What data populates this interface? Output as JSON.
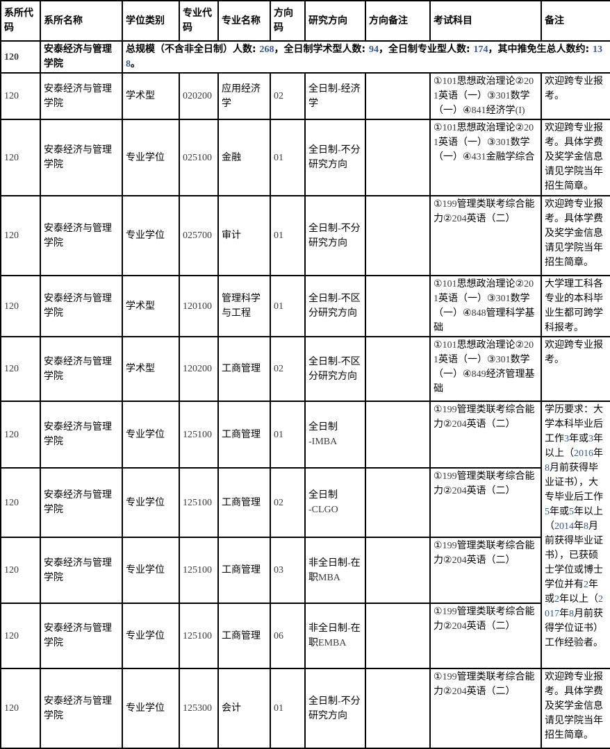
{
  "colors": {
    "border": "#000000",
    "text": "#000000",
    "code_digits": "#3c3c3c",
    "highlight_digits": "#35579e",
    "background": "#ffffff"
  },
  "table": {
    "columns": [
      {
        "key": "dept_code",
        "label": "系所代码"
      },
      {
        "key": "dept_name",
        "label": "系所名称"
      },
      {
        "key": "degree_type",
        "label": "学位类别"
      },
      {
        "key": "major_code",
        "label": "专业代码"
      },
      {
        "key": "major_name",
        "label": "专业名称"
      },
      {
        "key": "direction_code",
        "label": "方向码"
      },
      {
        "key": "research_direction",
        "label": "研究方向"
      },
      {
        "key": "direction_note",
        "label": "方向备注"
      },
      {
        "key": "exam_subjects",
        "label": "考试科目"
      },
      {
        "key": "remark",
        "label": "备注"
      }
    ],
    "summary_row": {
      "dept_code": "120",
      "dept_name": "安泰经济与管理学院",
      "text": "总规模（不含非全日制）人数: 268，全日制学术型人数: 94，全日制专业型人数: 174，其中推免生总人数约: 138。"
    },
    "rows": [
      {
        "dept_code": "120",
        "dept_name": "安泰经济与管理学院",
        "degree_type": "学术型",
        "major_code": "020200",
        "major_name": "应用经济学",
        "direction_code": "02",
        "research_direction": "全日制-经济学",
        "direction_note": "",
        "exam_subjects": "①101思想政治理论②201英语（一）③301数学（一）④841经济学(I)",
        "remark": "欢迎跨专业报考。"
      },
      {
        "dept_code": "120",
        "dept_name": "安泰经济与管理学院",
        "degree_type": "专业学位",
        "major_code": "025100",
        "major_name": "金融",
        "direction_code": "01",
        "research_direction": "全日制-不分研究方向",
        "direction_note": "",
        "exam_subjects": "①101思想政治理论②201英语（一）③301数学（一）④431金融学综合",
        "remark": "欢迎跨专业报考。具体学费及奖学金信息请见学院当年招生简章。"
      },
      {
        "dept_code": "120",
        "dept_name": "安泰经济与管理学院",
        "degree_type": "专业学位",
        "major_code": "025700",
        "major_name": "审计",
        "direction_code": "01",
        "research_direction": "全日制-不分研究方向",
        "direction_note": "",
        "exam_subjects": "①199管理类联考综合能力②204英语（二）",
        "remark": "欢迎跨专业报考。具体学费及奖学金信息请见学院当年招生简章。"
      },
      {
        "dept_code": "120",
        "dept_name": "安泰经济与管理学院",
        "degree_type": "学术型",
        "major_code": "120100",
        "major_name": "管理科学与工程",
        "direction_code": "01",
        "research_direction": "全日制-不区分研究方向",
        "direction_note": "",
        "exam_subjects": "①101思想政治理论②201英语（一）③301数学（一）④848管理科学基础",
        "remark": "大学理工科各专业的本科毕业生都可跨学科报考。"
      },
      {
        "dept_code": "120",
        "dept_name": "安泰经济与管理学院",
        "degree_type": "学术型",
        "major_code": "120200",
        "major_name": "工商管理",
        "direction_code": "02",
        "research_direction": "全日制-不区分研究方向",
        "direction_note": "",
        "exam_subjects": "①101思想政治理论②201英语（一）③301数学（一）④849经济管理基础",
        "remark": "欢迎跨专业报考。"
      },
      {
        "dept_code": "120",
        "dept_name": "安泰经济与管理学院",
        "degree_type": "专业学位",
        "major_code": "125100",
        "major_name": "工商管理",
        "direction_code": "01",
        "research_direction": "全日制\n-IMBA",
        "direction_note": "",
        "exam_subjects": "①199管理类联考综合能力②204英语（二）",
        "remark": "学历要求：大学本科毕业后工作3年或3年以上（2016年8月前获得毕业证书），大专毕业后工作5年或5年以上（2014年8月前获得毕业证书），已获硕士学位或博士学位并有2年或2年以上（2017年8月前获得学位证书）工作经验者。",
        "remark_rowspan": 4,
        "remark_highlight_digits": true
      },
      {
        "dept_code": "120",
        "dept_name": "安泰经济与管理学院",
        "degree_type": "专业学位",
        "major_code": "125100",
        "major_name": "工商管理",
        "direction_code": "02",
        "research_direction": "全日制\n-CLGO",
        "direction_note": "",
        "exam_subjects": "①199管理类联考综合能力②204英语（二）",
        "remark": null
      },
      {
        "dept_code": "120",
        "dept_name": "安泰经济与管理学院",
        "degree_type": "专业学位",
        "major_code": "125100",
        "major_name": "工商管理",
        "direction_code": "03",
        "research_direction": "非全日制-在职MBA",
        "direction_note": "",
        "exam_subjects": "①199管理类联考综合能力②204英语（二）",
        "remark": null
      },
      {
        "dept_code": "120",
        "dept_name": "安泰经济与管理学院",
        "degree_type": "专业学位",
        "major_code": "125100",
        "major_name": "工商管理",
        "direction_code": "06",
        "research_direction": "非全日制-在职EMBA",
        "direction_note": "",
        "exam_subjects": "①199管理类联考综合能力②204英语（二）",
        "remark": null
      },
      {
        "dept_code": "120",
        "dept_name": "安泰经济与管理学院",
        "degree_type": "专业学位",
        "major_code": "125300",
        "major_name": "会计",
        "direction_code": "01",
        "research_direction": "全日制-不分研究方向",
        "direction_note": "",
        "exam_subjects": "①199管理类联考综合能力②204英语（二）",
        "remark": "欢迎跨专业报考。具体学费及奖学金信息请见学院当年招生简章。"
      }
    ]
  }
}
